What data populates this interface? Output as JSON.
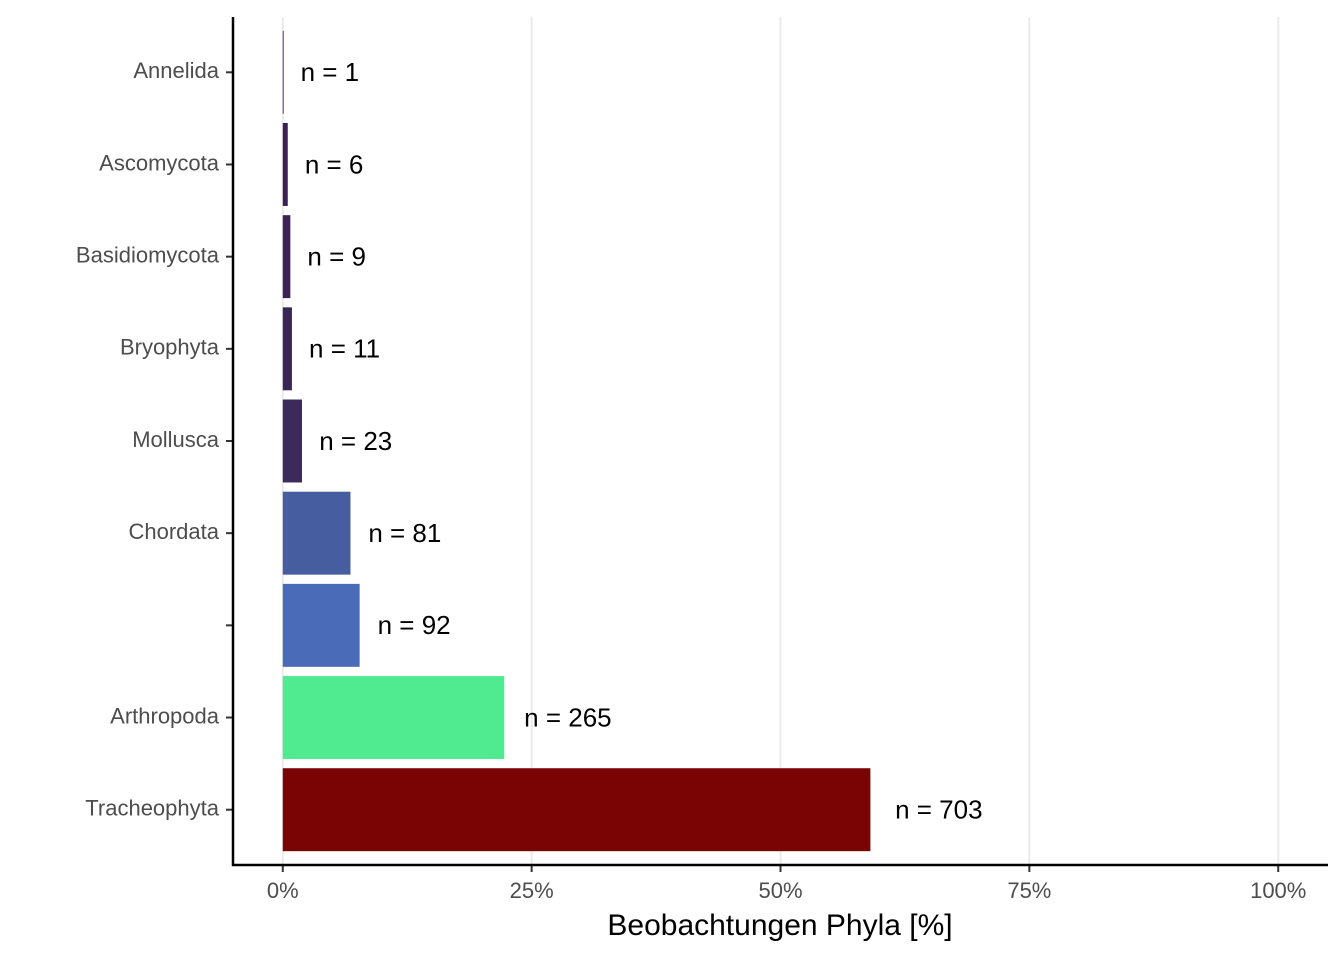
{
  "chart_data": {
    "type": "bar",
    "orientation": "horizontal",
    "x_label": "Beobachtungen Phyla [%]",
    "categories": [
      "Annelida",
      "Ascomycota",
      "Basidiomycota",
      "Bryophyta",
      "Mollusca",
      "Chordata",
      null,
      "Arthropoda",
      "Tracheophyta"
    ],
    "values": [
      0.08,
      0.5,
      0.76,
      0.92,
      1.93,
      6.8,
      7.72,
      22.25,
      59.03
    ],
    "bar_labels": [
      "n = 1",
      "n = 6",
      "n = 9",
      "n = 11",
      "n = 23",
      "n = 81",
      "n = 92",
      "n = 265",
      "n = 703"
    ],
    "colors": [
      "#3b0f4f",
      "#3b1f55",
      "#3b2358",
      "#3b2558",
      "#3b2a5a",
      "#465da0",
      "#4a6bb8",
      "#50eb90",
      "#7a0403"
    ],
    "xlim": [
      -5,
      105
    ],
    "xticks": [
      {
        "value": 0,
        "label": "0%"
      },
      {
        "value": 25,
        "label": "25%"
      },
      {
        "value": 50,
        "label": "50%"
      },
      {
        "value": 75,
        "label": "75%"
      },
      {
        "value": 100,
        "label": "100%"
      }
    ],
    "grid": true
  }
}
